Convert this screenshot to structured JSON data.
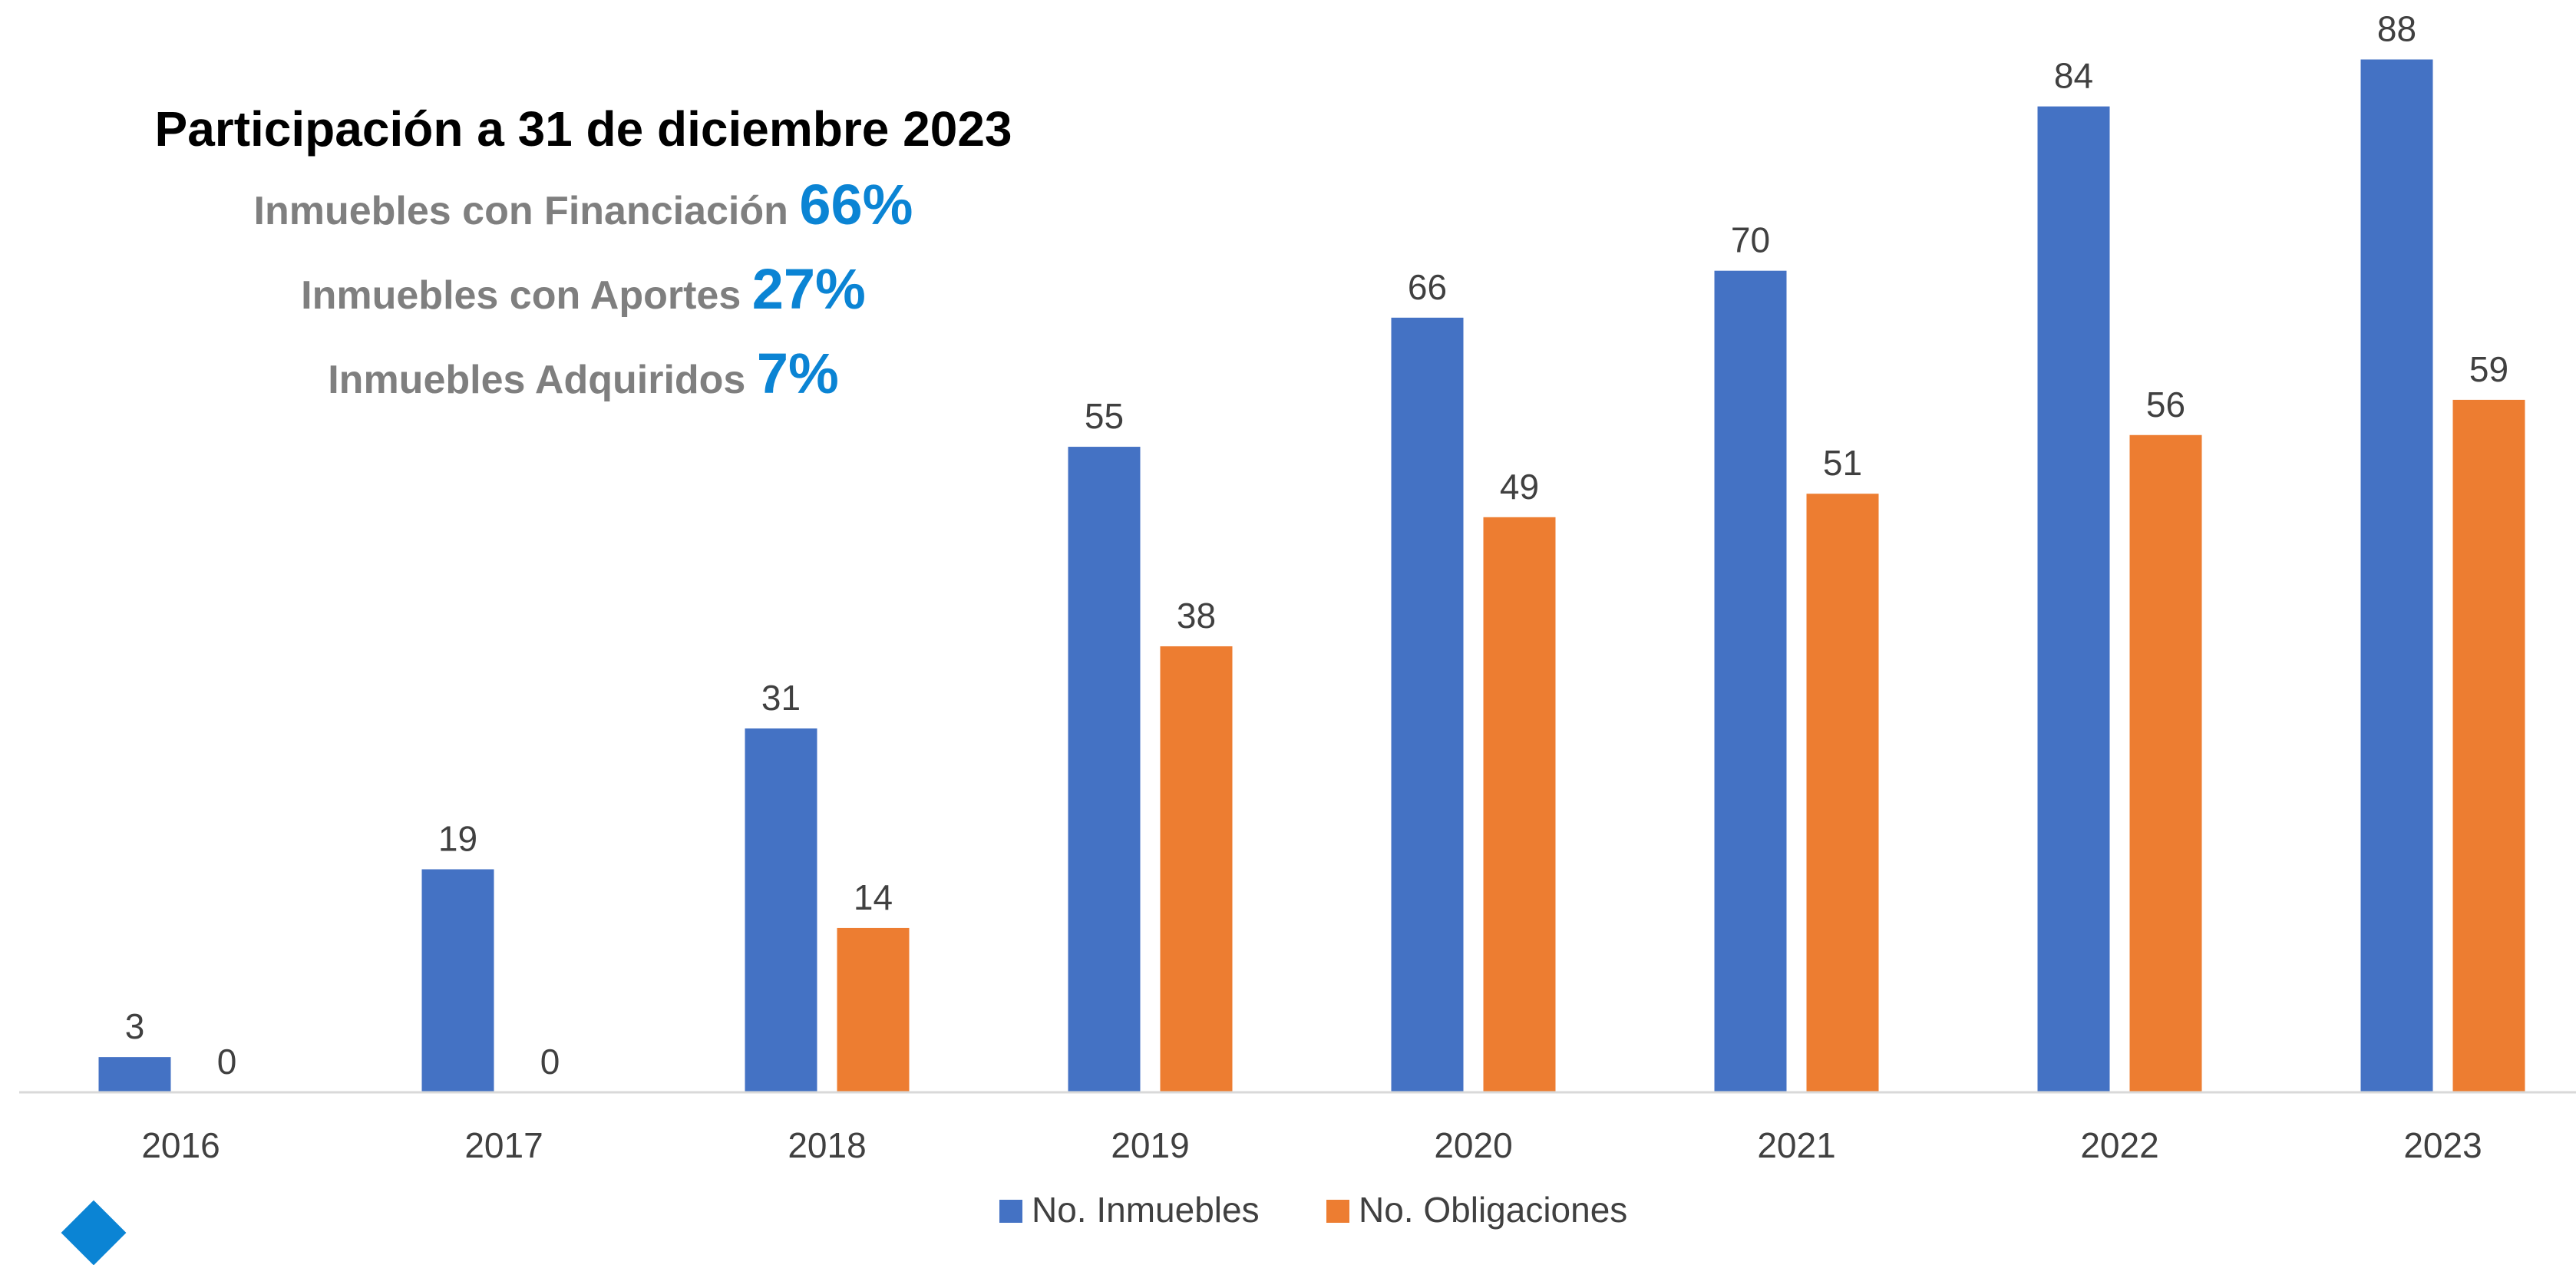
{
  "annotation": {
    "title": "Participación a 31 de diciembre 2023",
    "rows": [
      {
        "label": "Inmuebles con Financiación",
        "value": "66%"
      },
      {
        "label": "Inmuebles con Aportes",
        "value": "27%"
      },
      {
        "label": "Inmuebles Adquiridos",
        "value": "7%"
      }
    ]
  },
  "colors": {
    "series_1": "#4472c4",
    "series_2": "#ed7d31",
    "accent_text": "#0b84d4",
    "muted_text": "#7f7f7f"
  },
  "chart_data": {
    "type": "bar",
    "categories": [
      "2016",
      "2017",
      "2018",
      "2019",
      "2020",
      "2021",
      "2022",
      "2023"
    ],
    "series": [
      {
        "name": "No. Inmuebles",
        "values": [
          3,
          19,
          31,
          55,
          66,
          70,
          84,
          88
        ]
      },
      {
        "name": "No. Obligaciones",
        "values": [
          0,
          0,
          14,
          38,
          49,
          51,
          56,
          59
        ]
      }
    ],
    "ylim": [
      0,
      90
    ],
    "grid": false,
    "legend": "bottom",
    "data_labels": true
  }
}
